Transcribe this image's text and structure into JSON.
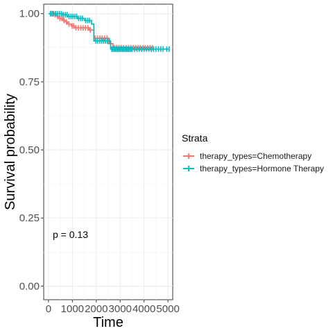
{
  "chart_data": {
    "type": "line",
    "subtype": "kaplan-meier",
    "xlabel": "Time",
    "ylabel": "Survival probability",
    "xlim": [
      -200,
      5200
    ],
    "ylim": [
      -0.05,
      1.035
    ],
    "xticks": [
      0,
      1000,
      2000,
      3000,
      4000,
      5000
    ],
    "xtick_labels": [
      "0",
      "1000",
      "2000",
      "3000",
      "4000",
      "5000"
    ],
    "yticks": [
      0,
      0.25,
      0.5,
      0.75,
      1.0
    ],
    "ytick_labels": [
      "0.00",
      "0.25",
      "0.50",
      "0.75",
      "1.00"
    ],
    "grid": true,
    "legend_position": "right",
    "legend_title": "Strata",
    "annotation": "p = 0.13",
    "series": [
      {
        "name": "therapy_types=Chemotherapy",
        "color": "#F8766D",
        "steps": [
          [
            0,
            1.0
          ],
          [
            250,
            0.996
          ],
          [
            350,
            0.99
          ],
          [
            420,
            0.983
          ],
          [
            600,
            0.975
          ],
          [
            700,
            0.97
          ],
          [
            800,
            0.962
          ],
          [
            950,
            0.955
          ],
          [
            1100,
            0.948
          ],
          [
            1700,
            0.94
          ],
          [
            1900,
            0.91
          ],
          [
            2500,
            0.89
          ],
          [
            2700,
            0.875
          ],
          [
            4350,
            0.875
          ]
        ],
        "censor_x": [
          100,
          180,
          280,
          380,
          480,
          560,
          650,
          750,
          860,
          990,
          1050,
          1150,
          1250,
          1350,
          1450,
          1550,
          1650,
          1750,
          1950,
          2050,
          2150,
          2250,
          2350,
          2450,
          2600,
          2750,
          2850,
          2950,
          3050,
          3150,
          3250,
          3350,
          3450,
          3550,
          3650,
          3750,
          3850,
          3950,
          4050,
          4150,
          4250,
          4350
        ]
      },
      {
        "name": "therapy_types=Hormone Therapy",
        "color": "#00BFC4",
        "steps": [
          [
            0,
            1.0
          ],
          [
            600,
            0.996
          ],
          [
            800,
            0.99
          ],
          [
            1200,
            0.983
          ],
          [
            1500,
            0.975
          ],
          [
            1800,
            0.962
          ],
          [
            1900,
            0.9
          ],
          [
            2600,
            0.87
          ],
          [
            5050,
            0.87
          ]
        ],
        "censor_x": [
          80,
          150,
          220,
          300,
          380,
          460,
          540,
          620,
          700,
          780,
          860,
          940,
          1020,
          1100,
          1180,
          1260,
          1340,
          1420,
          1560,
          1640,
          1720,
          1980,
          2060,
          2140,
          2220,
          2300,
          2380,
          2460,
          2550,
          2650,
          2700,
          2750,
          2800,
          2850,
          2900,
          2950,
          3000,
          3050,
          3100,
          3150,
          3200,
          3250,
          3300,
          3350,
          3400,
          3450,
          3500,
          3600,
          3700,
          3800,
          3900,
          4000,
          4100,
          4200,
          4300,
          4400,
          4500,
          4600,
          4700,
          4800,
          4950,
          5050
        ]
      }
    ]
  }
}
